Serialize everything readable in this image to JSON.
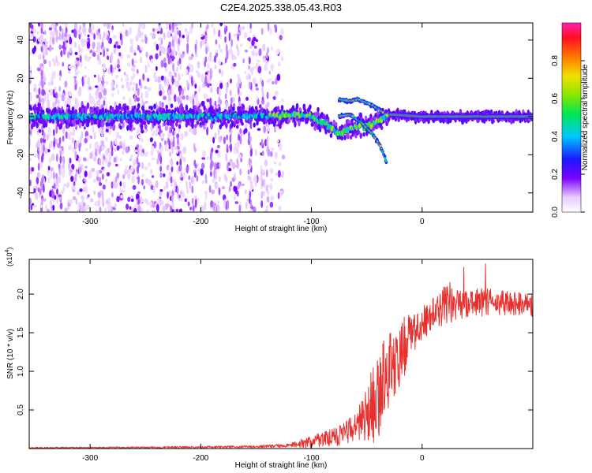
{
  "page_title": "C2E4.2025.338.05.43.R03",
  "colors": {
    "snr_line": "#e8302e",
    "frame": "#000000"
  },
  "chart_data": [
    {
      "type": "heatmap",
      "title": "C2E4.2025.338.05.43.R03",
      "xlabel": "Height of straight line (km)",
      "ylabel": "Frequency (Hz)",
      "xlim": [
        -355,
        100
      ],
      "ylim": [
        -50,
        49
      ],
      "xticks": [
        -300,
        -200,
        -100,
        0
      ],
      "yticks": [
        -40,
        -20,
        0,
        20,
        40
      ],
      "xtick_labels": [
        "-300",
        "-200",
        "-100",
        "0"
      ],
      "ytick_labels": [
        "-40",
        "-20",
        "0",
        "20",
        "40"
      ],
      "colorbar": {
        "label": "Normalized spectral amplitude",
        "range": [
          0,
          1
        ],
        "ticks": [
          0,
          0.2,
          0.4,
          0.6,
          0.8
        ],
        "tick_labels": [
          "0.0",
          "0.2",
          "0.4",
          "0.6",
          "0.8"
        ],
        "colormap": "purple-blue-cyan-green-yellow-orange-red-magenta"
      },
      "center_track": [
        [
          -355,
          0
        ],
        [
          -300,
          0
        ],
        [
          -200,
          0
        ],
        [
          -130,
          0.5
        ],
        [
          -110,
          1
        ],
        [
          -100,
          0
        ],
        [
          -90,
          -3
        ],
        [
          -80,
          -7
        ],
        [
          -75,
          -9
        ],
        [
          -65,
          -6
        ],
        [
          -55,
          -5
        ],
        [
          -45,
          -4
        ],
        [
          -35,
          -1
        ],
        [
          -30,
          1
        ],
        [
          -25,
          1
        ],
        [
          0,
          0
        ],
        [
          50,
          0
        ],
        [
          100,
          0
        ]
      ],
      "branch_tracks": [
        [
          [
            -75,
            9
          ],
          [
            -65,
            8
          ],
          [
            -58,
            9
          ],
          [
            -45,
            6
          ],
          [
            -35,
            2
          ]
        ],
        [
          [
            -75,
            0
          ],
          [
            -65,
            1
          ],
          [
            -55,
            -3
          ],
          [
            -45,
            -9
          ],
          [
            -38,
            -15
          ],
          [
            -32,
            -24
          ]
        ]
      ]
    },
    {
      "type": "line",
      "xlabel": "Height of straight line (km)",
      "ylabel": "SNR (10 * v/v)",
      "y_multiplier": "(x10",
      "y_multiplier_exp": "4",
      "y_multiplier_close": ")",
      "xlim": [
        -355,
        100
      ],
      "ylim": [
        0,
        24500
      ],
      "xticks": [
        -300,
        -200,
        -100,
        0
      ],
      "yticks": [
        5000,
        10000,
        15000,
        20000
      ],
      "xtick_labels": [
        "-300",
        "-200",
        "-100",
        "0"
      ],
      "ytick_labels": [
        "0.5",
        "1.0",
        "1.5",
        "2.0"
      ],
      "envelope": {
        "x": [
          -355,
          -250,
          -150,
          -120,
          -100,
          -80,
          -60,
          -50,
          -40,
          -30,
          -20,
          -10,
          0,
          10,
          20,
          40,
          60,
          80,
          100
        ],
        "mean": [
          100,
          150,
          250,
          400,
          900,
          1500,
          2500,
          4000,
          7000,
          10000,
          12500,
          14500,
          16000,
          17500,
          18500,
          19000,
          19000,
          18800,
          18500
        ],
        "amplitude": [
          80,
          100,
          150,
          250,
          800,
          1200,
          2000,
          4000,
          6000,
          5000,
          4500,
          3000,
          2500,
          2000,
          2500,
          2000,
          1800,
          1600,
          1500
        ]
      }
    }
  ]
}
